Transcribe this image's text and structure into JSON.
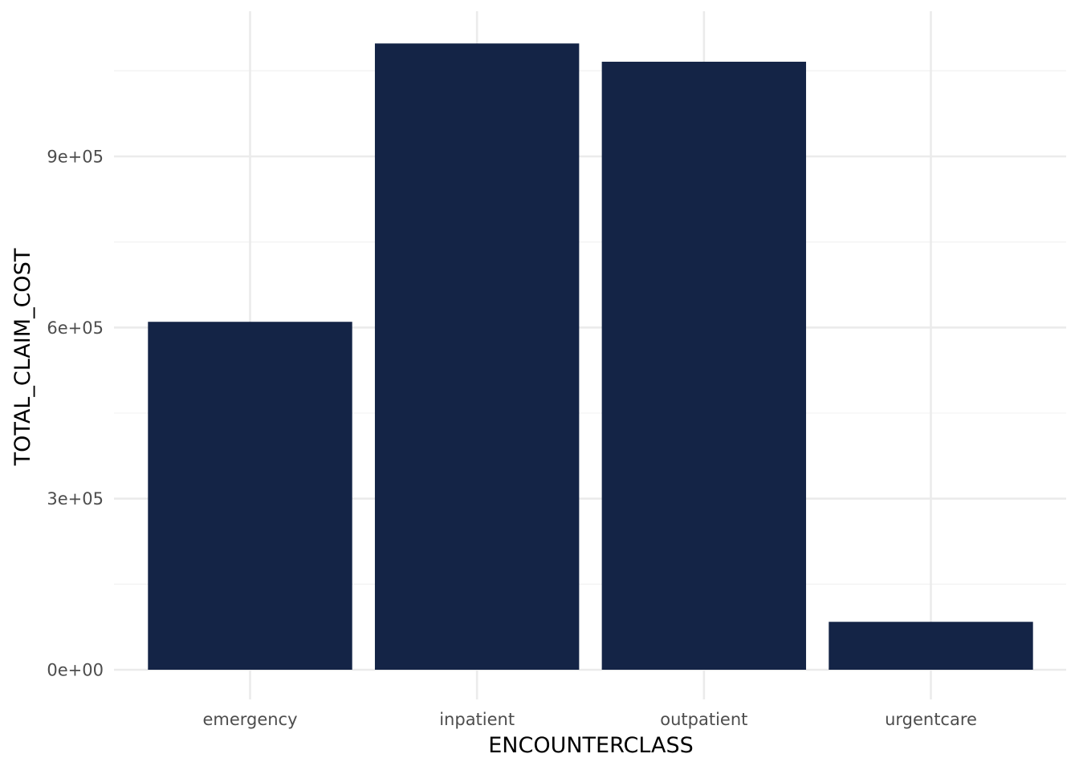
{
  "chart_data": {
    "type": "bar",
    "categories": [
      "emergency",
      "inpatient",
      "outpatient",
      "urgentcare"
    ],
    "values": [
      610000,
      1098000,
      1066000,
      84000
    ],
    "title": "",
    "xlabel": "ENCOUNTERCLASS",
    "ylabel": "TOTAL_CLAIM_COST",
    "ylim": [
      0,
      1150000
    ],
    "y_ticks": [
      0,
      300000,
      600000,
      900000
    ],
    "y_tick_labels": [
      "0e+00",
      "3e+05",
      "6e+05",
      "9e+05"
    ],
    "y_minor_ticks": [
      150000,
      450000,
      750000,
      1050000
    ],
    "grid": true,
    "legend": "none",
    "colors": {
      "bar": "#142446",
      "grid_major": "#ebebeb",
      "grid_minor": "#f3f3f3",
      "tick_text": "#4d4d4d",
      "axis_title": "#000000"
    }
  }
}
